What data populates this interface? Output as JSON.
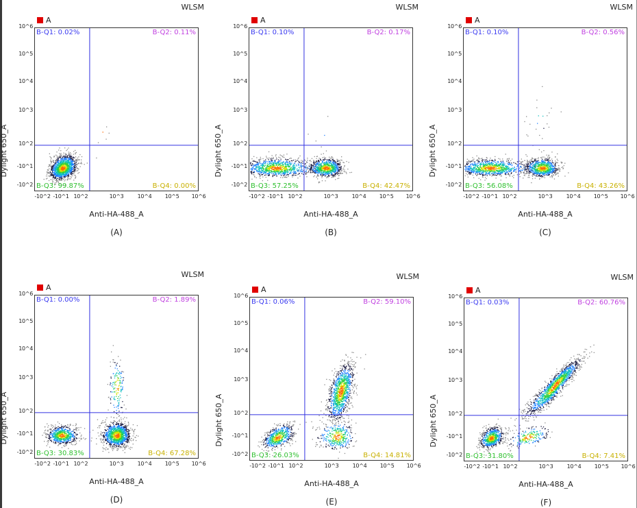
{
  "chart_data": [
    {
      "type": "scatter",
      "panel_label": "(A)",
      "instrument": "WLSM",
      "legend": "A",
      "xlabel": "Anti-HA-488_A",
      "ylabel": "Dylight 650_A",
      "quadrants": {
        "q1": "B-Q1: 0.02%",
        "q2": "B-Q2: 0.11%",
        "q3": "B-Q3: 99.87%",
        "q4": "B-Q4: 0.00%"
      },
      "populations": [
        {
          "x": -5,
          "y": -10,
          "sx": 0.35,
          "sy": 0.3,
          "n": 1400,
          "corr": 0.3
        },
        {
          "x": 400,
          "y": 250,
          "sx": 0.15,
          "sy": 0.15,
          "n": 5,
          "corr": 0
        }
      ]
    },
    {
      "type": "scatter",
      "panel_label": "(B)",
      "instrument": "WLSM",
      "legend": "A",
      "xlabel": "Anti-HA-488_A",
      "ylabel": "Dylight 650_A",
      "quadrants": {
        "q1": "B-Q1: 0.10%",
        "q2": "B-Q2: 0.17%",
        "q3": "B-Q3: 57.25%",
        "q4": "B-Q4: 42.47%"
      },
      "populations": [
        {
          "x": -10,
          "y": -10,
          "sx": 0.9,
          "sy": 0.22,
          "n": 1000,
          "corr": 0
        },
        {
          "x": 700,
          "y": -10,
          "sx": 0.25,
          "sy": 0.22,
          "n": 800,
          "corr": 0
        },
        {
          "x": 500,
          "y": 300,
          "sx": 0.3,
          "sy": 0.5,
          "n": 6,
          "corr": 0
        }
      ]
    },
    {
      "type": "scatter",
      "panel_label": "(C)",
      "instrument": "WLSM",
      "legend": "A",
      "xlabel": "Anti-HA-488_A",
      "ylabel": "Dylight 650_A",
      "quadrants": {
        "q1": "B-Q1: 0.10%",
        "q2": "B-Q2: 0.56%",
        "q3": "B-Q3: 56.08%",
        "q4": "B-Q4: 43.26%"
      },
      "populations": [
        {
          "x": -10,
          "y": -10,
          "sx": 0.9,
          "sy": 0.2,
          "n": 1000,
          "corr": 0
        },
        {
          "x": 800,
          "y": -10,
          "sx": 0.25,
          "sy": 0.22,
          "n": 800,
          "corr": 0
        },
        {
          "x": 700,
          "y": 600,
          "sx": 0.25,
          "sy": 0.5,
          "n": 25,
          "corr": 0
        }
      ]
    },
    {
      "type": "scatter",
      "panel_label": "(D)",
      "instrument": "WLSM",
      "legend": "A",
      "xlabel": "Anti-HA-488_A",
      "ylabel": "Dylight 650_A",
      "quadrants": {
        "q1": "B-Q1: 0.00%",
        "q2": "B-Q2: 1.89%",
        "q3": "B-Q3: 30.83%",
        "q4": "B-Q4: 67.28%"
      },
      "populations": [
        {
          "x": -10,
          "y": -10,
          "sx": 0.4,
          "sy": 0.22,
          "n": 700,
          "corr": 0
        },
        {
          "x": 1000,
          "y": -10,
          "sx": 0.22,
          "sy": 0.3,
          "n": 1200,
          "corr": 0
        },
        {
          "x": 1000,
          "y": 600,
          "sx": 0.12,
          "sy": 0.45,
          "n": 150,
          "corr": 0
        }
      ]
    },
    {
      "type": "scatter",
      "panel_label": "(E)",
      "instrument": "WLSM",
      "legend": "A",
      "xlabel": "Anti-HA-488_A",
      "ylabel": "Dylight 650_A",
      "quadrants": {
        "q1": "B-Q1: 0.06%",
        "q2": "B-Q2: 59.10%",
        "q3": "B-Q3: 26.03%",
        "q4": "B-Q4: 14.81%"
      },
      "populations": [
        {
          "x": -5,
          "y": -10,
          "sx": 0.4,
          "sy": 0.3,
          "n": 600,
          "corr": 0.5
        },
        {
          "x": 2000,
          "y": 500,
          "sx": 0.22,
          "sy": 0.45,
          "n": 1100,
          "corr": 0.5
        },
        {
          "x": 1500,
          "y": -5,
          "sx": 0.3,
          "sy": 0.35,
          "n": 350,
          "corr": 0
        }
      ]
    },
    {
      "type": "scatter",
      "panel_label": "(F)",
      "instrument": "WLSM",
      "legend": "A",
      "xlabel": "Anti-HA-488_A",
      "ylabel": "Dylight 650_A",
      "quadrants": {
        "q1": "B-Q1: 0.03%",
        "q2": "B-Q2: 60.76%",
        "q3": "B-Q3: 31.80%",
        "q4": "B-Q4: 7.41%"
      },
      "populations": [
        {
          "x": -10,
          "y": -10,
          "sx": 0.3,
          "sy": 0.25,
          "n": 700,
          "corr": 0.3
        },
        {
          "x": 2000,
          "y": 800,
          "sx": 0.45,
          "sy": 0.45,
          "n": 1300,
          "corr": 0.93
        },
        {
          "x": 300,
          "y": -5,
          "sx": 0.3,
          "sy": 0.25,
          "n": 200,
          "corr": 0.5
        }
      ]
    }
  ],
  "axes": {
    "x_ticks": [
      "-10^2",
      "-10^1",
      "10^2",
      "10^3",
      "10^4",
      "10^5",
      "10^6"
    ],
    "y_ticks": [
      "10^6",
      "10^5",
      "10^4",
      "10^3",
      "10^2",
      "-10^1",
      "-10^2"
    ],
    "x_gate": 170,
    "y_gate": 100
  },
  "colors": {
    "q1": "#3a3af0",
    "q2": "#c040e0",
    "q3": "#30c030",
    "q4": "#c8b000",
    "gate": "#3030e0",
    "legend": "#e00000"
  }
}
